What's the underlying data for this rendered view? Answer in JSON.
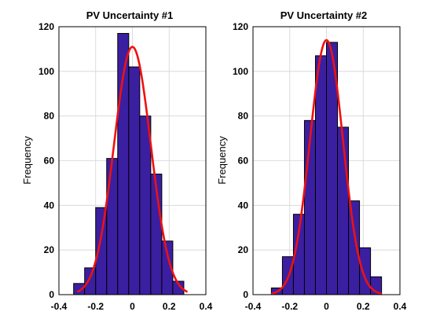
{
  "chart_data": [
    {
      "type": "bar",
      "title": "PV Uncertainty  #1",
      "xlabel": "",
      "ylabel": "Frequency",
      "xlim": [
        -0.4,
        0.4
      ],
      "ylim": [
        0,
        120
      ],
      "xticks": [
        "-0.4",
        "-0.2",
        "0",
        "0.2",
        "0.4"
      ],
      "yticks": [
        "0",
        "20",
        "40",
        "60",
        "80",
        "100",
        "120"
      ],
      "grid": true,
      "bin_edges": [
        -0.32,
        -0.26,
        -0.2,
        -0.14,
        -0.08,
        -0.02,
        0.04,
        0.1,
        0.16,
        0.22,
        0.28
      ],
      "values": [
        5,
        12,
        39,
        61,
        117,
        102,
        80,
        54,
        24,
        6
      ],
      "fit_curve": {
        "type": "normal",
        "mean": 0.0,
        "std": 0.1,
        "peak": 111,
        "x_range": [
          -0.3,
          0.3
        ],
        "color": "#ee1111"
      },
      "bar_color": "#3b1fa1"
    },
    {
      "type": "bar",
      "title": "PV Uncertainty  #2",
      "xlabel": "",
      "ylabel": "Frequency",
      "xlim": [
        -0.4,
        0.4
      ],
      "ylim": [
        0,
        120
      ],
      "xticks": [
        "-0.4",
        "-0.2",
        "0",
        "0.2",
        "0.4"
      ],
      "yticks": [
        "0",
        "20",
        "40",
        "60",
        "80",
        "100",
        "120"
      ],
      "grid": true,
      "bin_edges": [
        -0.3,
        -0.24,
        -0.18,
        -0.12,
        -0.06,
        0.0,
        0.06,
        0.12,
        0.18,
        0.24,
        0.3
      ],
      "values": [
        3,
        17,
        36,
        78,
        107,
        113,
        75,
        42,
        21,
        8
      ],
      "fit_curve": {
        "type": "normal",
        "mean": 0.0,
        "std": 0.09,
        "peak": 114,
        "x_range": [
          -0.3,
          0.3
        ],
        "color": "#ee1111"
      },
      "bar_color": "#3b1fa1"
    }
  ]
}
